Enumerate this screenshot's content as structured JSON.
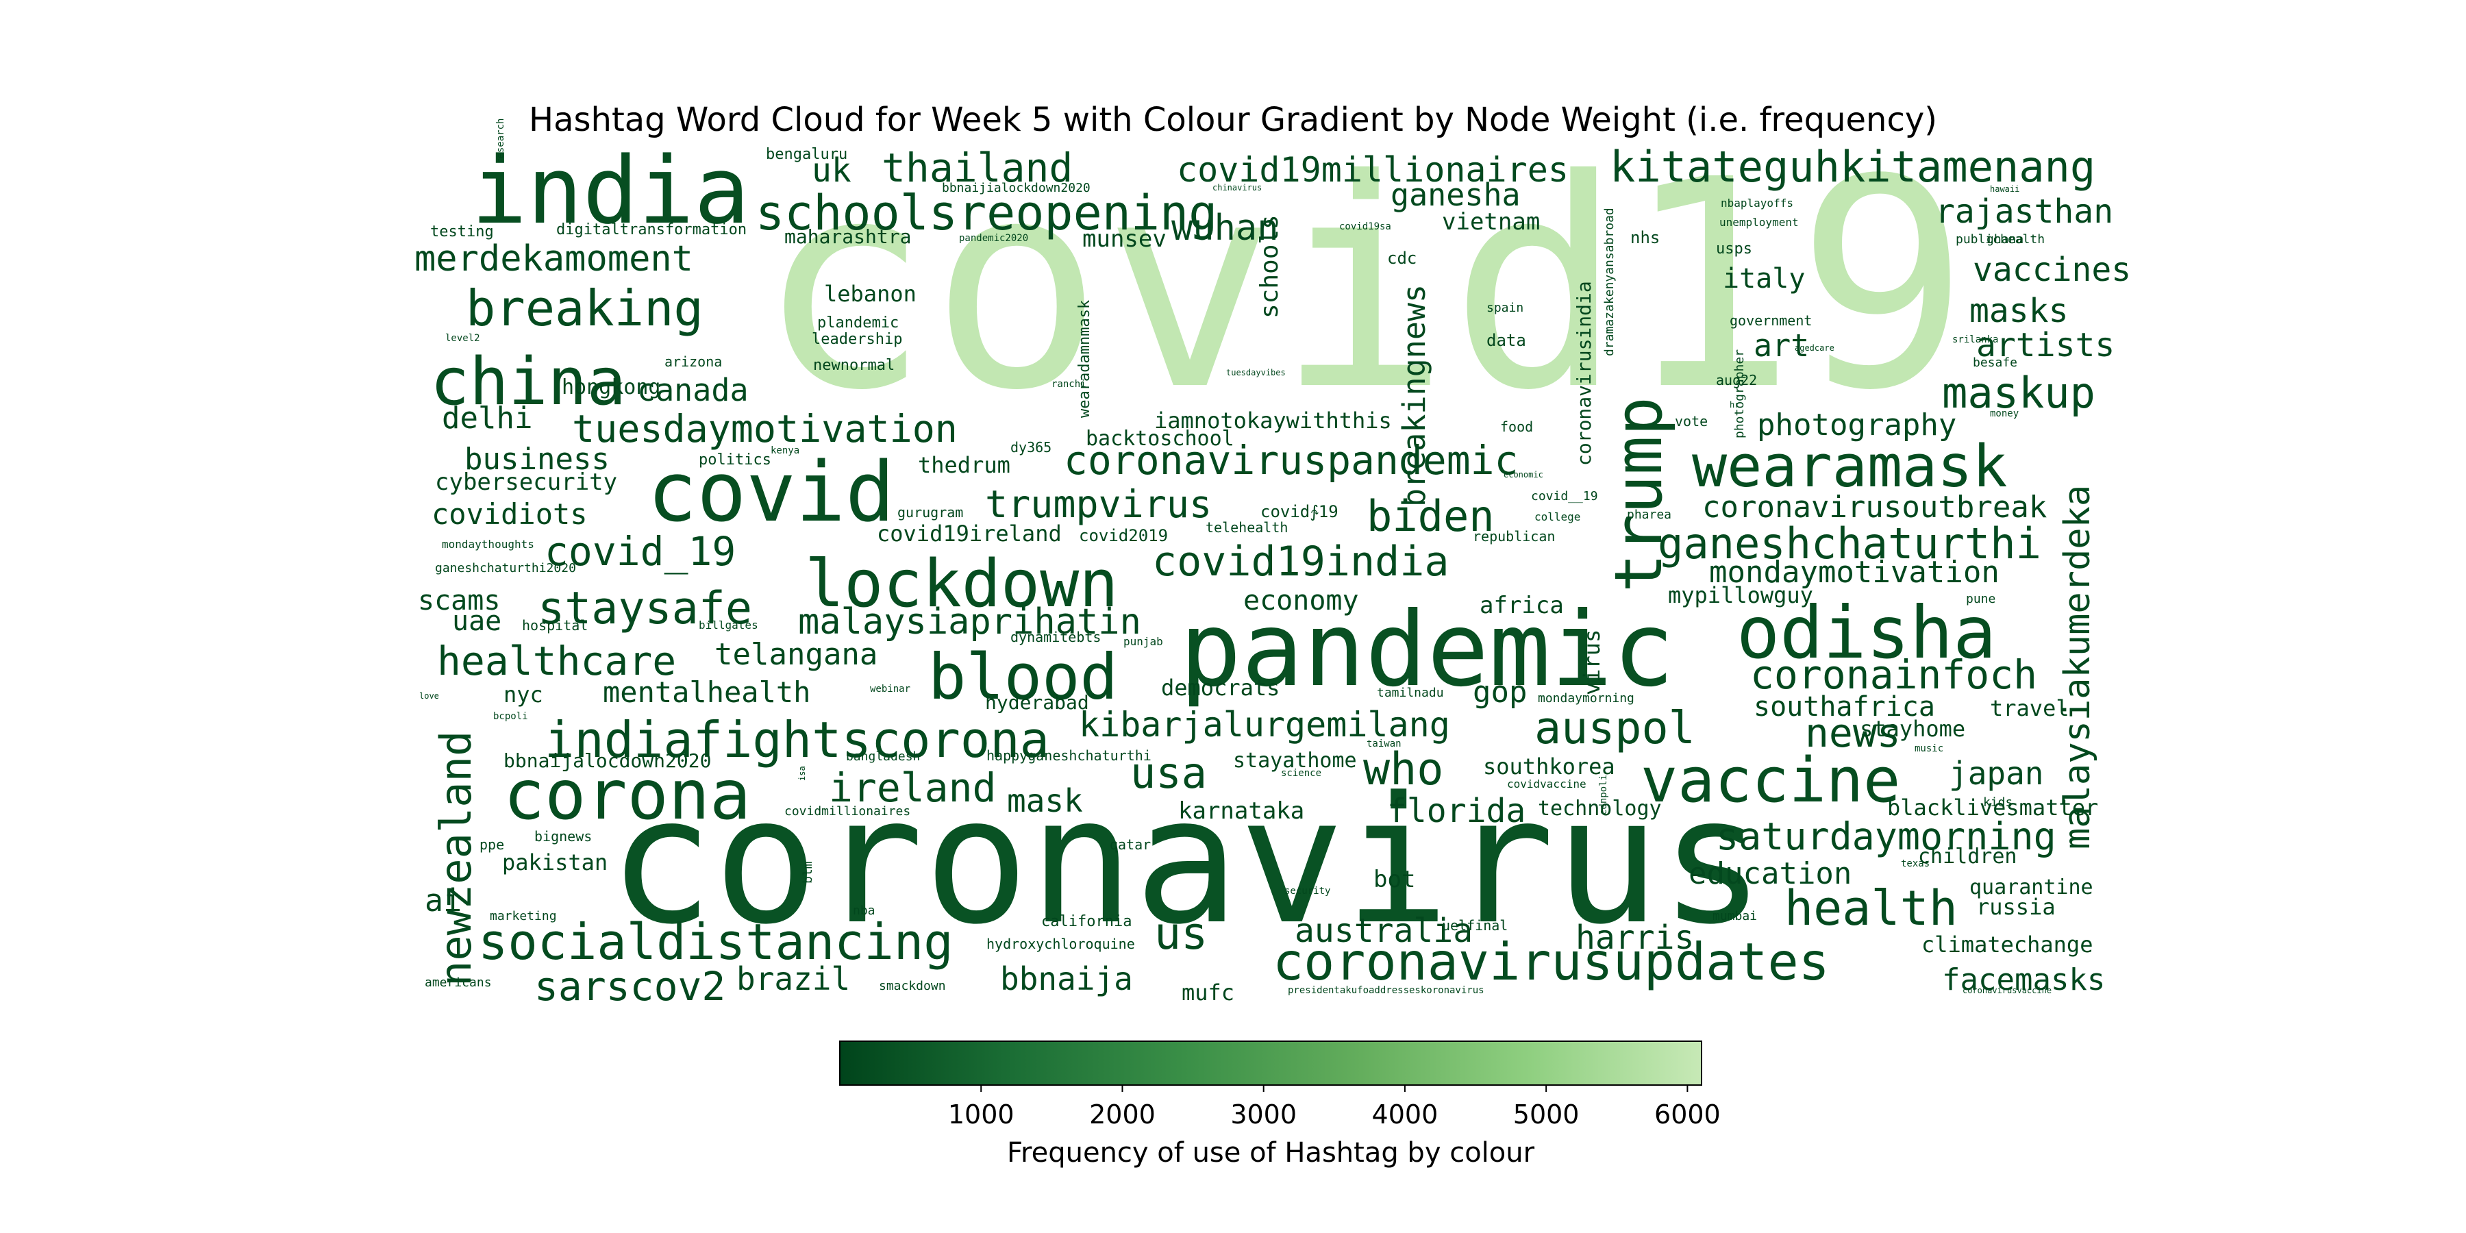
{
  "chart_data": {
    "type": "wordcloud",
    "title": "Hashtag Word Cloud for Week 5 with Colour Gradient by Node Weight (i.e. frequency)",
    "colorbar": {
      "label": "Frequency of use of Hashtag by colour",
      "ticks": [
        1000,
        2000,
        3000,
        4000,
        5000,
        6000
      ],
      "range": [
        0,
        6100
      ],
      "colormap": [
        "#00441b",
        "#1b6e35",
        "#3a8f47",
        "#63ad5c",
        "#8fcf80",
        "#c7e9b6"
      ]
    },
    "words": [
      {
        "text": "covid19",
        "freq": 6000
      },
      {
        "text": "coronavirus",
        "freq": 400
      },
      {
        "text": "pandemic",
        "freq": 350
      },
      {
        "text": "india",
        "freq": 300
      },
      {
        "text": "covid",
        "freq": 300
      },
      {
        "text": "odisha",
        "freq": 250
      },
      {
        "text": "vaccine",
        "freq": 250
      },
      {
        "text": "lockdown",
        "freq": 250
      },
      {
        "text": "corona",
        "freq": 250
      },
      {
        "text": "china",
        "freq": 250
      },
      {
        "text": "trump",
        "freq": 250
      },
      {
        "text": "wearamask",
        "freq": 250
      },
      {
        "text": "coronavirusupdates",
        "freq": 220
      },
      {
        "text": "socialdistancing",
        "freq": 200
      },
      {
        "text": "indiafightscorona",
        "freq": 200
      },
      {
        "text": "blood",
        "freq": 200
      },
      {
        "text": "schoolsreopening",
        "freq": 200
      },
      {
        "text": "breaking",
        "freq": 200
      },
      {
        "text": "kitateguhkitamenang",
        "freq": 180
      },
      {
        "text": "staysafe",
        "freq": 180
      },
      {
        "text": "health",
        "freq": 180
      },
      {
        "text": "newzealand",
        "freq": 180
      },
      {
        "text": "ganeshchaturthi",
        "freq": 180
      },
      {
        "text": "maskup",
        "freq": 180
      },
      {
        "text": "coronaviruspandemic",
        "freq": 160
      },
      {
        "text": "auspol",
        "freq": 160
      },
      {
        "text": "biden",
        "freq": 160
      },
      {
        "text": "covid19india",
        "freq": 160
      },
      {
        "text": "ireland",
        "freq": 160
      },
      {
        "text": "usa",
        "freq": 160
      },
      {
        "text": "us",
        "freq": 160
      },
      {
        "text": "who",
        "freq": 160
      },
      {
        "text": "covid_19",
        "freq": 150
      },
      {
        "text": "tuesdaymotivation",
        "freq": 150
      },
      {
        "text": "thailand",
        "freq": 150
      },
      {
        "text": "healthcare",
        "freq": 150
      },
      {
        "text": "merdekamoment",
        "freq": 140
      },
      {
        "text": "covid19millionaires",
        "freq": 140
      },
      {
        "text": "trumpvirus",
        "freq": 140
      },
      {
        "text": "malaysiaprihatin",
        "freq": 140
      },
      {
        "text": "kibarjalurgemilang",
        "freq": 140
      },
      {
        "text": "saturdaymorning",
        "freq": 140
      },
      {
        "text": "coronainfoch",
        "freq": 140
      },
      {
        "text": "news",
        "freq": 140
      },
      {
        "text": "malaysiakumerdeka",
        "freq": 140
      },
      {
        "text": "breakingnews",
        "freq": 130
      },
      {
        "text": "sarscov2",
        "freq": 130
      },
      {
        "text": "wuhan",
        "freq": 130
      },
      {
        "text": "rajasthan",
        "freq": 120
      },
      {
        "text": "vaccines",
        "freq": 120
      },
      {
        "text": "masks",
        "freq": 120
      },
      {
        "text": "artists",
        "freq": 120
      },
      {
        "text": "photography",
        "freq": 120
      },
      {
        "text": "coronavirusoutbreak",
        "freq": 120
      },
      {
        "text": "mondaymotivation",
        "freq": 120
      },
      {
        "text": "florida",
        "freq": 120
      },
      {
        "text": "australia",
        "freq": 120
      },
      {
        "text": "harris",
        "freq": 120
      },
      {
        "text": "education",
        "freq": 120
      },
      {
        "text": "bbnaija",
        "freq": 120
      },
      {
        "text": "brazil",
        "freq": 120
      },
      {
        "text": "mask",
        "freq": 120
      },
      {
        "text": "japan",
        "freq": 120
      },
      {
        "text": "facemasks",
        "freq": 120
      },
      {
        "text": "ganesha",
        "freq": 110
      },
      {
        "text": "uk",
        "freq": 110
      },
      {
        "text": "canada",
        "freq": 110
      },
      {
        "text": "business",
        "freq": 110
      },
      {
        "text": "delhi",
        "freq": 110
      },
      {
        "text": "covidiots",
        "freq": 110
      },
      {
        "text": "scams",
        "freq": 110
      },
      {
        "text": "uae",
        "freq": 110
      },
      {
        "text": "telangana",
        "freq": 110
      },
      {
        "text": "mentalhealth",
        "freq": 110
      },
      {
        "text": "economy",
        "freq": 110
      },
      {
        "text": "gop",
        "freq": 110
      },
      {
        "text": "southafrica",
        "freq": 110
      },
      {
        "text": "italy",
        "freq": 110
      },
      {
        "text": "art",
        "freq": 110
      },
      {
        "text": "ai",
        "freq": 110
      },
      {
        "text": "schools",
        "freq": 100
      },
      {
        "text": "virus",
        "freq": 100
      },
      {
        "text": "cybersecurity",
        "freq": 100
      },
      {
        "text": "munsev",
        "freq": 100
      },
      {
        "text": "vietnam",
        "freq": 100
      },
      {
        "text": "lebanon",
        "freq": 100
      },
      {
        "text": "thedrum",
        "freq": 100
      },
      {
        "text": "covid19ireland",
        "freq": 100
      },
      {
        "text": "iamnotokaywiththis",
        "freq": 100
      },
      {
        "text": "backtoschool",
        "freq": 100
      },
      {
        "text": "democrats",
        "freq": 100
      },
      {
        "text": "africa",
        "freq": 100
      },
      {
        "text": "mypillowguy",
        "freq": 100
      },
      {
        "text": "stayhome",
        "freq": 100
      },
      {
        "text": "travel",
        "freq": 100
      },
      {
        "text": "stayathome",
        "freq": 100
      },
      {
        "text": "southkorea",
        "freq": 100
      },
      {
        "text": "technology",
        "freq": 100
      },
      {
        "text": "karnataka",
        "freq": 100
      },
      {
        "text": "bot",
        "freq": 100
      },
      {
        "text": "blacklivesmatter",
        "freq": 100
      },
      {
        "text": "children",
        "freq": 100
      },
      {
        "text": "quarantine",
        "freq": 100
      },
      {
        "text": "russia",
        "freq": 100
      },
      {
        "text": "climatechange",
        "freq": 100
      },
      {
        "text": "mufc",
        "freq": 100
      },
      {
        "text": "pakistan",
        "freq": 100
      },
      {
        "text": "nyc",
        "freq": 100
      },
      {
        "text": "hongkong",
        "freq": 90
      },
      {
        "text": "bbnaijalocdown2020",
        "freq": 90
      },
      {
        "text": "maharashtra",
        "freq": 90
      },
      {
        "text": "hyderabad",
        "freq": 90
      },
      {
        "text": "coronavirusindia",
        "freq": 90
      },
      {
        "text": "wearadamnmask",
        "freq": 80
      },
      {
        "text": "ranchi",
        "freq": 80
      },
      {
        "text": "plandemic",
        "freq": 80
      },
      {
        "text": "leadership",
        "freq": 80
      },
      {
        "text": "newnormal",
        "freq": 80
      },
      {
        "text": "digitaltransformation",
        "freq": 80
      },
      {
        "text": "testing",
        "freq": 80
      },
      {
        "text": "bengaluru",
        "freq": 80
      },
      {
        "text": "bbnaijialockdown2020",
        "freq": 80
      },
      {
        "text": "nhs",
        "freq": 80
      },
      {
        "text": "usps",
        "freq": 80
      },
      {
        "text": "government",
        "freq": 80
      },
      {
        "text": "cdc",
        "freq": 80
      },
      {
        "text": "data",
        "freq": 80
      },
      {
        "text": "spain",
        "freq": 80
      },
      {
        "text": "food",
        "freq": 80
      },
      {
        "text": "vote",
        "freq": 80
      },
      {
        "text": "photographer",
        "freq": 80
      },
      {
        "text": "aug22",
        "freq": 80
      },
      {
        "text": "publichealth",
        "freq": 80
      },
      {
        "text": "ghana",
        "freq": 80
      },
      {
        "text": "politics",
        "freq": 80
      },
      {
        "text": "dy365",
        "freq": 80
      },
      {
        "text": "covid2019",
        "freq": 80
      },
      {
        "text": "telehealth",
        "freq": 80
      },
      {
        "text": "covid∱19",
        "freq": 80
      },
      {
        "text": "gurugram",
        "freq": 80
      },
      {
        "text": "dynamitebts",
        "freq": 80
      },
      {
        "text": "punjab",
        "freq": 80
      },
      {
        "text": "hospital",
        "freq": 80
      },
      {
        "text": "billgates",
        "freq": 80
      },
      {
        "text": "republican",
        "freq": 80
      },
      {
        "text": "pharea",
        "freq": 80
      },
      {
        "text": "college",
        "freq": 80
      },
      {
        "text": "covid__19",
        "freq": 80
      },
      {
        "text": "mondaymorning",
        "freq": 80
      },
      {
        "text": "tamilnadu",
        "freq": 80
      },
      {
        "text": "webinar",
        "freq": 80
      },
      {
        "text": "happyganeshchaturthi",
        "freq": 80
      },
      {
        "text": "bangladesh",
        "freq": 80
      },
      {
        "text": "covidmillionaires",
        "freq": 80
      },
      {
        "text": "qatar",
        "freq": 80
      },
      {
        "text": "bignews",
        "freq": 80
      },
      {
        "text": "ppe",
        "freq": 80
      },
      {
        "text": "marketing",
        "freq": 80
      },
      {
        "text": "americans",
        "freq": 80
      },
      {
        "text": "blm",
        "freq": 80
      },
      {
        "text": "nba",
        "freq": 80
      },
      {
        "text": "california",
        "freq": 80
      },
      {
        "text": "hydroxychloroquine",
        "freq": 80
      },
      {
        "text": "smackdown",
        "freq": 80
      },
      {
        "text": "presidentakufoaddresseskoronavirus",
        "freq": 80
      },
      {
        "text": "security",
        "freq": 80
      },
      {
        "text": "uelfinal",
        "freq": 80
      },
      {
        "text": "mumbai",
        "freq": 80
      },
      {
        "text": "texas",
        "freq": 80
      },
      {
        "text": "kids",
        "freq": 80
      },
      {
        "text": "besafe",
        "freq": 80
      },
      {
        "text": "coronavirusvaccine",
        "freq": 80
      },
      {
        "text": "covidvaccine",
        "freq": 80
      },
      {
        "text": "science",
        "freq": 80
      },
      {
        "text": "taiwan",
        "freq": 80
      },
      {
        "text": "bcpoli",
        "freq": 80
      },
      {
        "text": "love",
        "freq": 80
      },
      {
        "text": "isa",
        "freq": 80
      },
      {
        "text": "arizona",
        "freq": 80
      },
      {
        "text": "kenya",
        "freq": 80
      },
      {
        "text": "level2",
        "freq": 80
      },
      {
        "text": "research",
        "freq": 80
      },
      {
        "text": "pandemic2020",
        "freq": 80
      },
      {
        "text": "chinavirus",
        "freq": 80
      },
      {
        "text": "covid19sa",
        "freq": 80
      },
      {
        "text": "tuesdayvibes",
        "freq": 80
      },
      {
        "text": "nbaplayoffs",
        "freq": 80
      },
      {
        "text": "unemployment",
        "freq": 80
      },
      {
        "text": "hawaii",
        "freq": 80
      },
      {
        "text": "srilanka",
        "freq": 80
      },
      {
        "text": "agedcare",
        "freq": 80
      },
      {
        "text": "hr",
        "freq": 80
      },
      {
        "text": "money",
        "freq": 80
      },
      {
        "text": "economic",
        "freq": 80
      },
      {
        "text": "pune",
        "freq": 80
      },
      {
        "text": "music",
        "freq": 80
      },
      {
        "text": "dramazakenyansabroad",
        "freq": 80
      },
      {
        "text": "ganeshchaturthi2020",
        "freq": 80
      },
      {
        "text": "mondaythoughts",
        "freq": 80
      },
      {
        "text": "cdnpoli",
        "freq": 80
      }
    ]
  }
}
